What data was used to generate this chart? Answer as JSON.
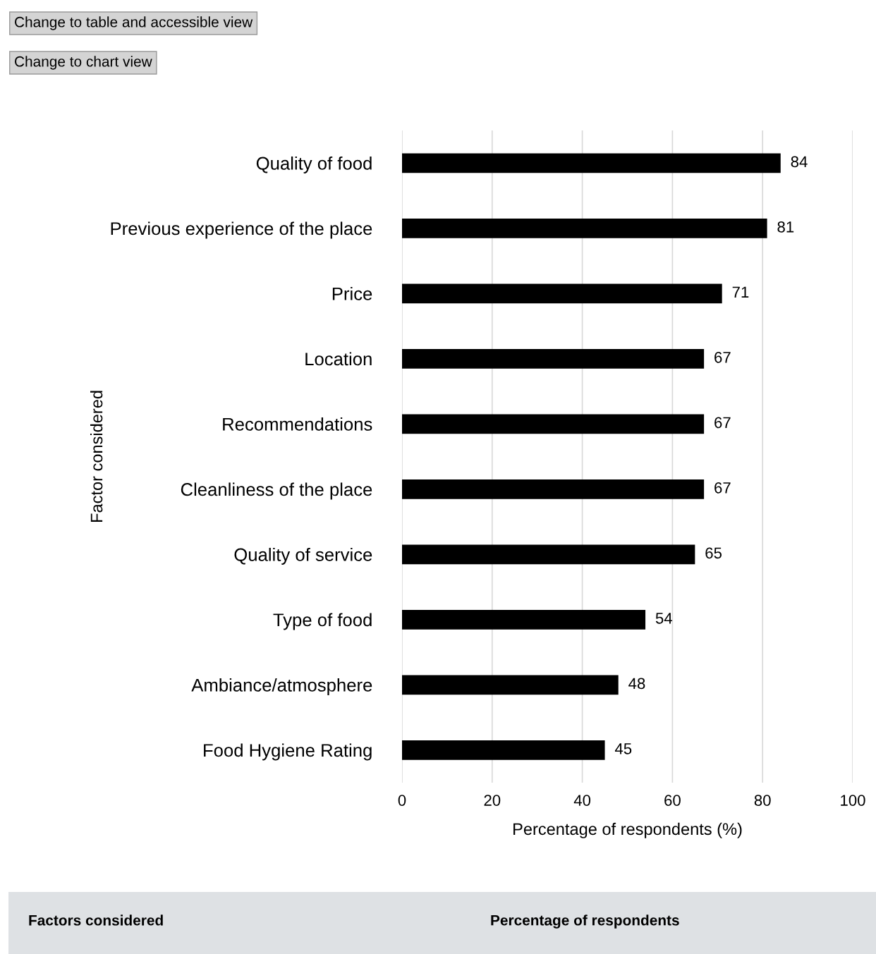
{
  "chart_data": {
    "type": "bar",
    "orientation": "horizontal",
    "xlabel": "Percentage of respondents (%)",
    "ylabel": "Factor considered",
    "categories": [
      "Quality of food",
      "Previous experience of the place",
      "Price",
      "Location",
      "Recommendations",
      "Cleanliness of the place",
      "Quality of service",
      "Type of food",
      "Ambiance/atmosphere",
      "Food Hygiene Rating"
    ],
    "values": [
      84,
      81,
      71,
      67,
      67,
      67,
      65,
      54,
      48,
      45
    ],
    "color": "#000000",
    "data_labels": true,
    "xlim": [
      0,
      100
    ],
    "xticks": [
      0,
      20,
      40,
      60,
      80,
      100
    ],
    "grid": "x",
    "legend": false,
    "annotations": [
      "Change to table and accessible view",
      "Change to chart view",
      "Factors considered",
      "Percentage of respondents"
    ]
  }
}
